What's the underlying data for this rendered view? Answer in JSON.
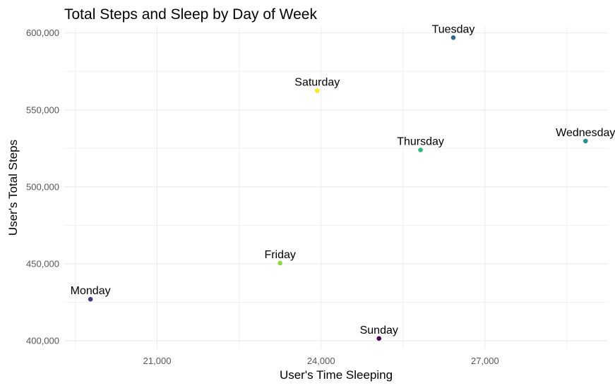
{
  "chart_data": {
    "type": "scatter",
    "title": "Total Steps and Sleep by Day of Week",
    "xlabel": "User's Time Sleeping",
    "ylabel": "User's Total Steps",
    "xlim": [
      19300,
      29250
    ],
    "ylim": [
      395000,
      604000
    ],
    "x_ticks": [
      21000,
      24000,
      27000
    ],
    "x_tick_labels": [
      "21,000",
      "24,000",
      "27,000"
    ],
    "y_ticks": [
      400000,
      450000,
      500000,
      550000,
      600000
    ],
    "y_tick_labels": [
      "400,000",
      "450,000",
      "500,000",
      "550,000",
      "600,000"
    ],
    "grid": true,
    "legend": "none",
    "points": [
      {
        "label": "Sunday",
        "x": 25060,
        "y": 401500,
        "color": "#440154"
      },
      {
        "label": "Monday",
        "x": 19780,
        "y": 427000,
        "color": "#443983"
      },
      {
        "label": "Tuesday",
        "x": 26420,
        "y": 597000,
        "color": "#31688e"
      },
      {
        "label": "Wednesday",
        "x": 28840,
        "y": 529800,
        "color": "#21918c"
      },
      {
        "label": "Thursday",
        "x": 25820,
        "y": 524000,
        "color": "#35b779"
      },
      {
        "label": "Friday",
        "x": 23250,
        "y": 450500,
        "color": "#90d743"
      },
      {
        "label": "Saturday",
        "x": 23930,
        "y": 562500,
        "color": "#fde725"
      }
    ]
  }
}
